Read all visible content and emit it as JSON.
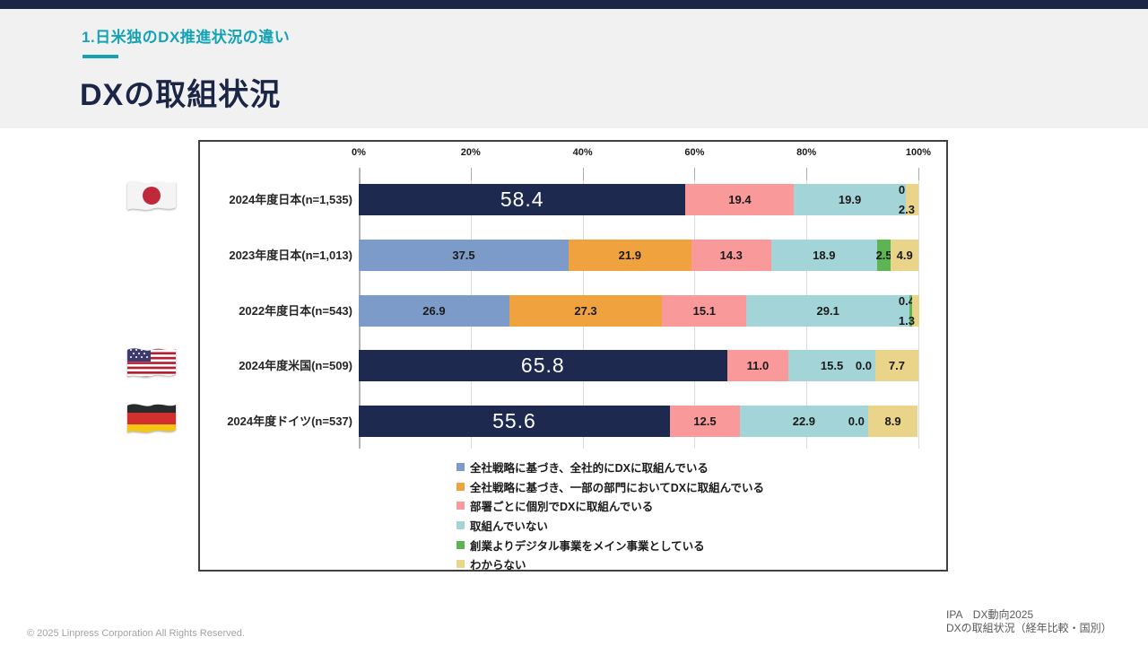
{
  "header": {
    "kicker": "1.日米独のDX推進状況の違い",
    "title": "DXの取組状況"
  },
  "footer": {
    "copyright": "© 2025 Linpress Corporation All Rights Reserved."
  },
  "source": {
    "line1": "IPA　DX動向2025",
    "line2": "DXの取組状況（経年比較・国別）"
  },
  "flags": [
    {
      "id": "japan",
      "name": "japan-flag"
    },
    {
      "id": "usa",
      "name": "usa-flag"
    },
    {
      "id": "germany",
      "name": "germany-flag"
    }
  ],
  "colors": {
    "accent_teal": "#14a3b5",
    "header_navy": "#1b2545",
    "panel_border": "#404040",
    "highlight_bar": "#1e2950"
  },
  "chart_data": {
    "type": "bar",
    "subtype": "horizontal-stacked",
    "title": "",
    "xlabel": "",
    "ylabel": "",
    "xlim": [
      0,
      100
    ],
    "x_ticks": [
      "0%",
      "20%",
      "40%",
      "60%",
      "80%",
      "100%"
    ],
    "grid": true,
    "legend_position": "bottom",
    "highlight_color": "#1e2950",
    "legend": [
      {
        "key": "company_wide",
        "label": "全社戦略に基づき、全社的にDXに取組んでいる",
        "color": "#7d9bc8"
      },
      {
        "key": "partial_dept",
        "label": "全社戦略に基づき、一部の部門においてDXに取組んでいる",
        "color": "#f0a23f"
      },
      {
        "key": "dept_individual",
        "label": "部署ごとに個別でDXに取組んでいる",
        "color": "#f9999a"
      },
      {
        "key": "not_engaged",
        "label": "取組んでいない",
        "color": "#a3d4d8"
      },
      {
        "key": "digital_native",
        "label": "創業よりデジタル事業をメイン事業としている",
        "color": "#5cb452"
      },
      {
        "key": "unknown",
        "label": "わからない",
        "color": "#e9d489"
      }
    ],
    "rows": [
      {
        "label": "2024年度日本(n=1,535)",
        "flag": "japan",
        "segments": [
          {
            "key": "company_wide",
            "value": 58.4,
            "text": "58.4",
            "highlight": true,
            "label_style": "big"
          },
          {
            "key": "dept_individual",
            "value": 19.4,
            "text": "19.4"
          },
          {
            "key": "not_engaged",
            "value": 19.9,
            "text": "19.9"
          },
          {
            "key": "digital_native",
            "value": 0.0,
            "text": "0.0",
            "label_pos": "stack-top"
          },
          {
            "key": "unknown",
            "value": 2.3,
            "text": "2.3",
            "label_pos": "stack-bottom"
          }
        ]
      },
      {
        "label": "2023年度日本(n=1,013)",
        "flag": null,
        "segments": [
          {
            "key": "company_wide",
            "value": 37.5,
            "text": "37.5"
          },
          {
            "key": "partial_dept",
            "value": 21.9,
            "text": "21.9"
          },
          {
            "key": "dept_individual",
            "value": 14.3,
            "text": "14.3"
          },
          {
            "key": "not_engaged",
            "value": 18.9,
            "text": "18.9"
          },
          {
            "key": "digital_native",
            "value": 2.5,
            "text": "2.5"
          },
          {
            "key": "unknown",
            "value": 4.9,
            "text": "4.9"
          }
        ]
      },
      {
        "label": "2022年度日本(n=543)",
        "flag": null,
        "segments": [
          {
            "key": "company_wide",
            "value": 26.9,
            "text": "26.9"
          },
          {
            "key": "partial_dept",
            "value": 27.3,
            "text": "27.3"
          },
          {
            "key": "dept_individual",
            "value": 15.1,
            "text": "15.1"
          },
          {
            "key": "not_engaged",
            "value": 29.1,
            "text": "29.1"
          },
          {
            "key": "digital_native",
            "value": 0.4,
            "text": "0.4",
            "label_pos": "stack-top"
          },
          {
            "key": "unknown",
            "value": 1.3,
            "text": "1.3",
            "label_pos": "stack-bottom"
          }
        ]
      },
      {
        "label": "2024年度米国(n=509)",
        "flag": "usa",
        "segments": [
          {
            "key": "company_wide",
            "value": 65.8,
            "text": "65.8",
            "highlight": true,
            "label_style": "big"
          },
          {
            "key": "dept_individual",
            "value": 11.0,
            "text": "11.0"
          },
          {
            "key": "not_engaged",
            "value": 15.5,
            "text": "15.5"
          },
          {
            "key": "digital_native",
            "value": 0.0,
            "text": "0.0",
            "label_pos": "before"
          },
          {
            "key": "unknown",
            "value": 7.7,
            "text": "7.7"
          }
        ]
      },
      {
        "label": "2024年度ドイツ(n=537)",
        "flag": "germany",
        "segments": [
          {
            "key": "company_wide",
            "value": 55.6,
            "text": "55.6",
            "highlight": true,
            "label_style": "big"
          },
          {
            "key": "dept_individual",
            "value": 12.5,
            "text": "12.5"
          },
          {
            "key": "not_engaged",
            "value": 22.9,
            "text": "22.9"
          },
          {
            "key": "digital_native",
            "value": 0.0,
            "text": "0.0",
            "label_pos": "before"
          },
          {
            "key": "unknown",
            "value": 8.9,
            "text": "8.9"
          }
        ]
      }
    ]
  }
}
